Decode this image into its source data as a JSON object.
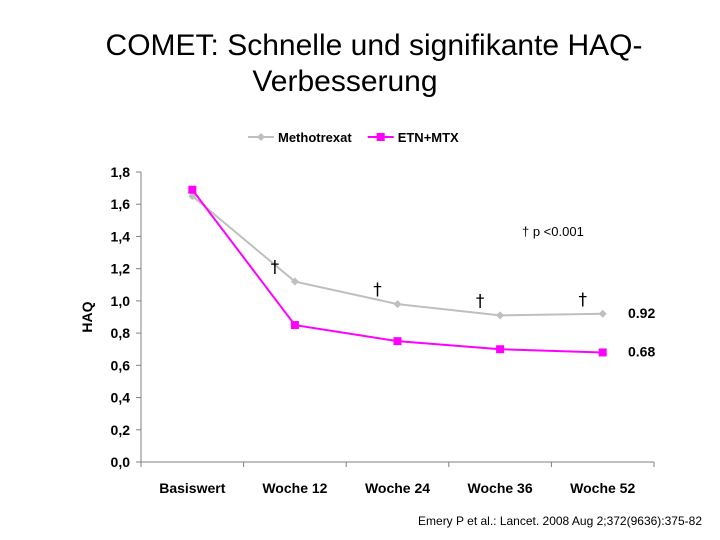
{
  "title": {
    "line1": "COMET: Schnelle und signifikante HAQ-",
    "line2": "Verbesserung"
  },
  "citation": "Emery P et al.: Lancet. 2008 Aug 2;372(9636):375-82",
  "chart_data": {
    "type": "line",
    "ylabel": "HAQ",
    "xlabel": "",
    "categories": [
      "Basiswert",
      "Woche 12",
      "Woche 24",
      "Woche 36",
      "Woche 52"
    ],
    "ylim": [
      0,
      1.8
    ],
    "y_ticks": [
      "0,0",
      "0,2",
      "0,4",
      "0,6",
      "0,8",
      "1,0",
      "1,2",
      "1,4",
      "1,6",
      "1,8"
    ],
    "grid": false,
    "legend_position": "top",
    "series": [
      {
        "name": "Methotrexat",
        "values": [
          1.65,
          1.12,
          0.98,
          0.91,
          0.92
        ],
        "color": "#BFBFBF",
        "marker": "diamond",
        "end_label": "0.92"
      },
      {
        "name": "ETN+MTX",
        "values": [
          1.69,
          0.85,
          0.75,
          0.7,
          0.68
        ],
        "color": "#FF00FF",
        "marker": "square",
        "end_label": "0.68"
      }
    ],
    "significance_marker": "†",
    "significance_points": [
      1,
      2,
      3,
      4
    ],
    "annotation": "† p <0.001"
  }
}
